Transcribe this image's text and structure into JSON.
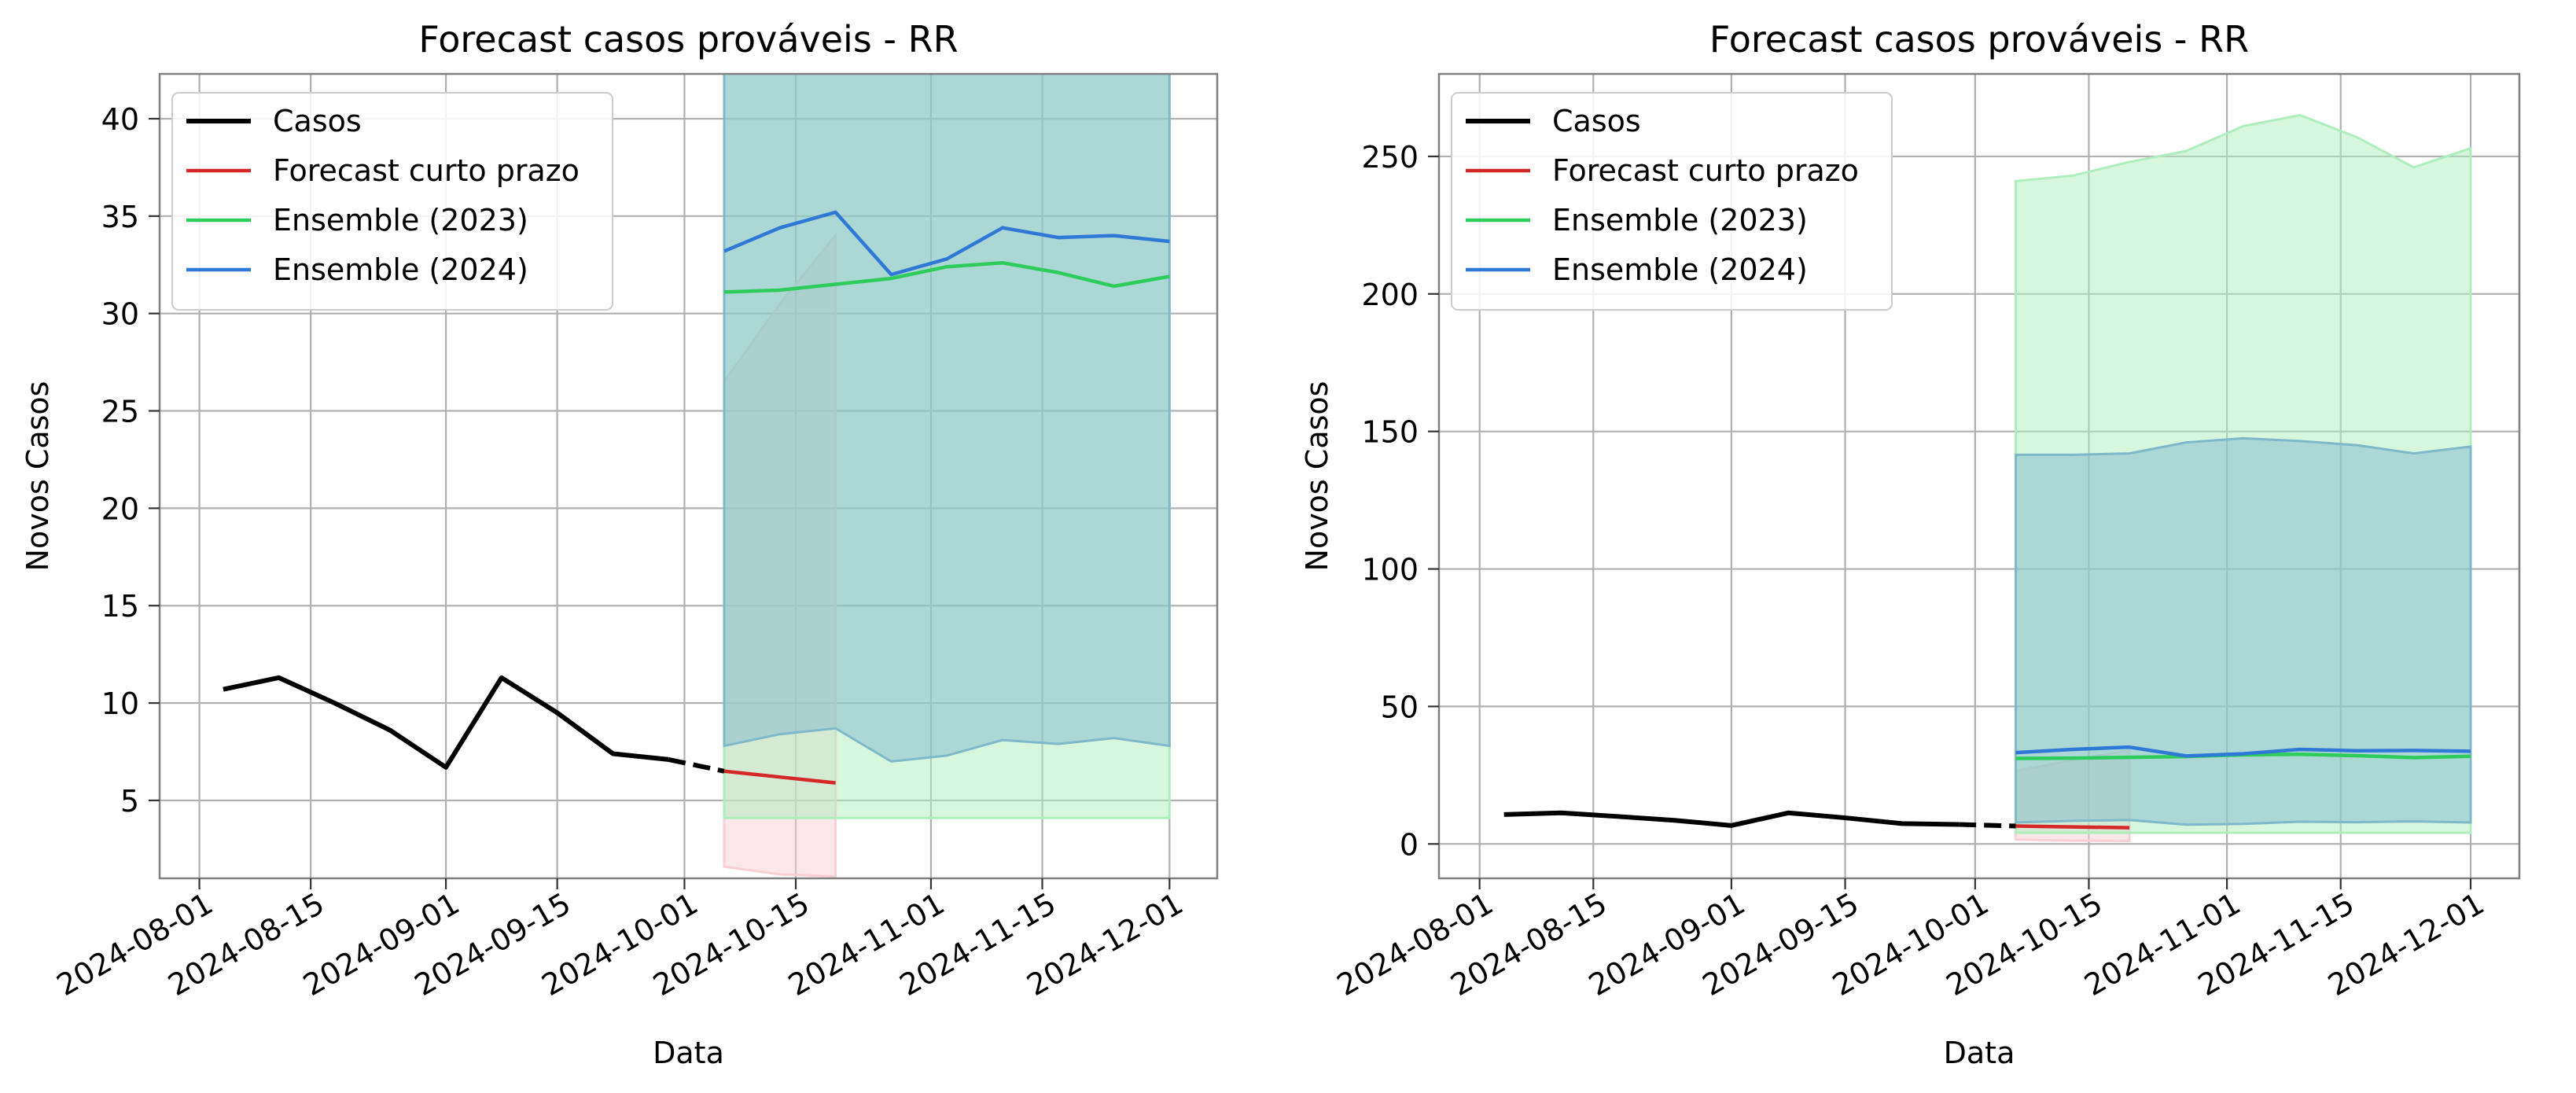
{
  "chart_data": [
    {
      "type": "line",
      "title": "Forecast casos prováveis - RR",
      "xlabel": "Data",
      "ylabel": "Novos Casos",
      "xlim": [
        "2024-07-27",
        "2024-12-07"
      ],
      "ylim": [
        1.0,
        42.3
      ],
      "xticks": [
        "2024-08-01",
        "2024-08-15",
        "2024-09-01",
        "2024-09-15",
        "2024-10-01",
        "2024-10-15",
        "2024-11-01",
        "2024-11-15",
        "2024-12-01"
      ],
      "yticks": [
        5,
        10,
        15,
        20,
        25,
        30,
        35,
        40
      ],
      "grid": true,
      "legend": "top-left",
      "series": [
        {
          "name": "Casos",
          "color": "#000000",
          "style": "solid",
          "x": [
            "2024-08-04",
            "2024-08-11",
            "2024-08-18",
            "2024-08-25",
            "2024-09-01",
            "2024-09-08",
            "2024-09-15",
            "2024-09-22",
            "2024-09-29"
          ],
          "values": [
            10.7,
            11.3,
            10.0,
            8.6,
            6.7,
            11.3,
            9.5,
            7.4,
            7.1
          ]
        },
        {
          "name": "",
          "color": "#000000",
          "style": "dashed",
          "x": [
            "2024-09-29",
            "2024-10-06"
          ],
          "values": [
            7.1,
            6.5
          ]
        },
        {
          "name": "Forecast curto prazo",
          "color": "#d62728",
          "style": "solid",
          "x": [
            "2024-10-06",
            "2024-10-13",
            "2024-10-20"
          ],
          "values": [
            6.5,
            6.2,
            5.9
          ],
          "band_lower": [
            1.6,
            1.2,
            1.1
          ],
          "band_upper": [
            26.5,
            30.5,
            34.0
          ],
          "band_color": "#f7cfd4"
        },
        {
          "name": "Ensemble (2023)",
          "color": "#2ecc5b",
          "style": "solid",
          "x": [
            "2024-10-06",
            "2024-10-13",
            "2024-10-20",
            "2024-10-27",
            "2024-11-03",
            "2024-11-10",
            "2024-11-17",
            "2024-11-24",
            "2024-12-01"
          ],
          "values": [
            31.1,
            31.2,
            31.5,
            31.8,
            32.4,
            32.6,
            32.1,
            31.4,
            31.9
          ],
          "band_lower": [
            4.1,
            4.1,
            4.1,
            4.1,
            4.1,
            4.1,
            4.1,
            4.1,
            4.1
          ],
          "band_upper": [
            241.0,
            243.0,
            248.0,
            252.0,
            261.0,
            265.0,
            257.0,
            246.0,
            253.0
          ],
          "band_color": "#aeeebd"
        },
        {
          "name": "Ensemble (2024)",
          "color": "#2f78d6",
          "style": "solid",
          "x": [
            "2024-10-06",
            "2024-10-13",
            "2024-10-20",
            "2024-10-27",
            "2024-11-03",
            "2024-11-10",
            "2024-11-17",
            "2024-11-24",
            "2024-12-01"
          ],
          "values": [
            33.2,
            34.4,
            35.2,
            32.0,
            32.8,
            34.4,
            33.9,
            34.0,
            33.7
          ],
          "band_lower": [
            7.8,
            8.4,
            8.7,
            7.0,
            7.3,
            8.1,
            7.9,
            8.2,
            7.8
          ],
          "band_upper": [
            141.5,
            141.5,
            142.0,
            146.0,
            147.5,
            146.5,
            145.0,
            142.0,
            144.5
          ],
          "band_color": "#7fb8c9"
        }
      ]
    },
    {
      "type": "line",
      "title": "Forecast casos prováveis - RR",
      "xlabel": "Data",
      "ylabel": "Novos Casos",
      "xlim": [
        "2024-07-27",
        "2024-12-07"
      ],
      "ylim": [
        -12.5,
        280.0
      ],
      "xticks": [
        "2024-08-01",
        "2024-08-15",
        "2024-09-01",
        "2024-09-15",
        "2024-10-01",
        "2024-10-15",
        "2024-11-01",
        "2024-11-15",
        "2024-12-01"
      ],
      "yticks": [
        0,
        50,
        100,
        150,
        200,
        250
      ],
      "grid": true,
      "legend": "top-left",
      "series": [
        {
          "name": "Casos",
          "color": "#000000",
          "style": "solid",
          "x": [
            "2024-08-04",
            "2024-08-11",
            "2024-08-18",
            "2024-08-25",
            "2024-09-01",
            "2024-09-08",
            "2024-09-15",
            "2024-09-22",
            "2024-09-29"
          ],
          "values": [
            10.7,
            11.3,
            10.0,
            8.6,
            6.7,
            11.3,
            9.5,
            7.4,
            7.1
          ]
        },
        {
          "name": "",
          "color": "#000000",
          "style": "dashed",
          "x": [
            "2024-09-29",
            "2024-10-06"
          ],
          "values": [
            7.1,
            6.5
          ]
        },
        {
          "name": "Forecast curto prazo",
          "color": "#d62728",
          "style": "solid",
          "x": [
            "2024-10-06",
            "2024-10-13",
            "2024-10-20"
          ],
          "values": [
            6.5,
            6.2,
            5.9
          ],
          "band_lower": [
            1.6,
            1.2,
            1.1
          ],
          "band_upper": [
            26.5,
            30.5,
            34.0
          ],
          "band_color": "#f7cfd4"
        },
        {
          "name": "Ensemble (2023)",
          "color": "#2ecc5b",
          "style": "solid",
          "x": [
            "2024-10-06",
            "2024-10-13",
            "2024-10-20",
            "2024-10-27",
            "2024-11-03",
            "2024-11-10",
            "2024-11-17",
            "2024-11-24",
            "2024-12-01"
          ],
          "values": [
            31.1,
            31.2,
            31.5,
            31.8,
            32.4,
            32.6,
            32.1,
            31.4,
            31.9
          ],
          "band_lower": [
            4.1,
            4.1,
            4.1,
            4.1,
            4.1,
            4.1,
            4.1,
            4.1,
            4.1
          ],
          "band_upper": [
            241.0,
            243.0,
            248.0,
            252.0,
            261.0,
            265.0,
            257.0,
            246.0,
            253.0
          ],
          "band_color": "#aeeebd"
        },
        {
          "name": "Ensemble (2024)",
          "color": "#2f78d6",
          "style": "solid",
          "x": [
            "2024-10-06",
            "2024-10-13",
            "2024-10-20",
            "2024-10-27",
            "2024-11-03",
            "2024-11-10",
            "2024-11-17",
            "2024-11-24",
            "2024-12-01"
          ],
          "values": [
            33.2,
            34.4,
            35.2,
            32.0,
            32.8,
            34.4,
            33.9,
            34.0,
            33.7
          ],
          "band_lower": [
            7.8,
            8.4,
            8.7,
            7.0,
            7.3,
            8.1,
            7.9,
            8.2,
            7.8
          ],
          "band_upper": [
            141.5,
            141.5,
            142.0,
            146.0,
            147.5,
            146.5,
            145.0,
            142.0,
            144.5
          ],
          "band_color": "#7fb8c9"
        }
      ]
    }
  ]
}
